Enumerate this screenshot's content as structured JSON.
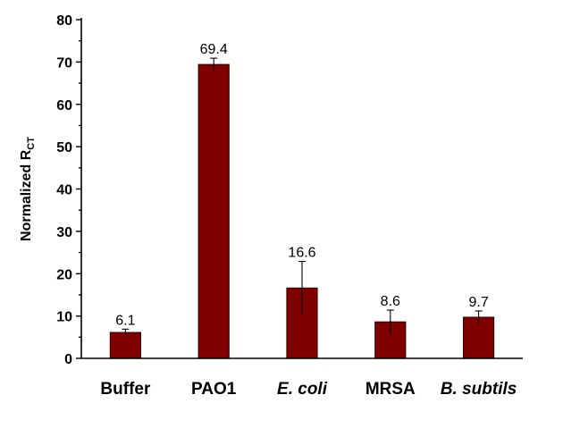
{
  "chart_data": {
    "type": "bar",
    "categories": [
      "Buffer",
      "PAO1",
      "E. coli",
      "MRSA",
      "B. subtils"
    ],
    "category_italic": [
      false,
      false,
      true,
      false,
      true
    ],
    "values": [
      6.1,
      69.4,
      16.6,
      8.6,
      9.7
    ],
    "value_labels": [
      "6.1",
      "69.4",
      "16.6",
      "8.6",
      "9.7"
    ],
    "errors": [
      0.8,
      1.5,
      6.3,
      2.8,
      1.5
    ],
    "ylabel": "Normalized R",
    "ylabel_subscript": "CT",
    "ylim": [
      0,
      80
    ],
    "yticks": [
      "0",
      "10",
      "20",
      "30",
      "40",
      "50",
      "60",
      "70",
      "80"
    ],
    "grid": false,
    "bar_color": "#800000"
  }
}
